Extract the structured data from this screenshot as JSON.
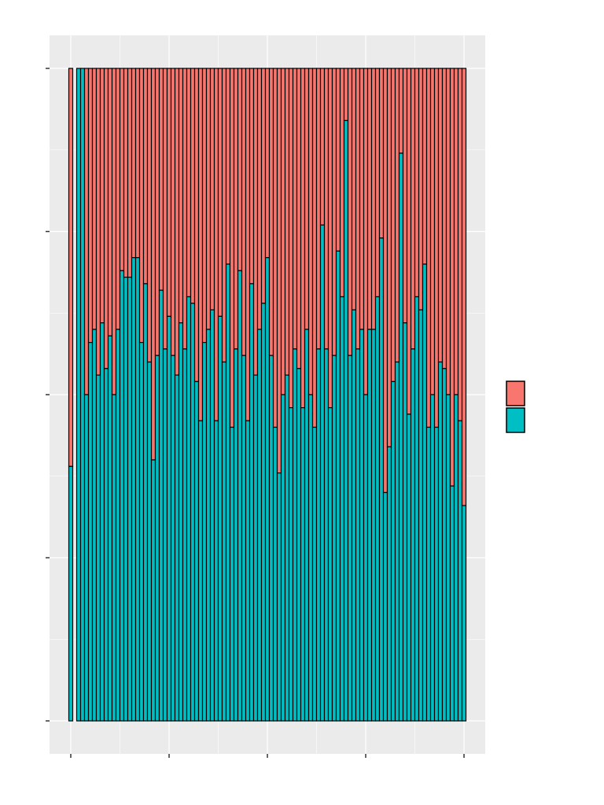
{
  "chart_data": {
    "type": "bar",
    "stacked": "proportion",
    "title": "",
    "xlabel": "",
    "ylabel": "",
    "xlim": [
      0,
      100
    ],
    "ylim": [
      0,
      1
    ],
    "xticks": [
      0,
      25,
      50,
      75,
      100
    ],
    "yticks": [
      0,
      0.25,
      0.5,
      0.75,
      1
    ],
    "grid": true,
    "legend": {
      "placement": "right",
      "entries": [
        {
          "color": "#F8766D"
        },
        {
          "color": "#00BFC4"
        }
      ]
    },
    "colors": {
      "top_series": "#F8766D",
      "bottom_series": "#00BFC4",
      "panel": "#EBEBEB",
      "grid": "#FFFFFF",
      "outline": "#000000"
    },
    "x": [
      0,
      1,
      2,
      3,
      4,
      5,
      6,
      7,
      8,
      9,
      10,
      11,
      12,
      13,
      14,
      15,
      16,
      17,
      18,
      19,
      20,
      21,
      22,
      23,
      24,
      25,
      26,
      27,
      28,
      29,
      30,
      31,
      32,
      33,
      34,
      35,
      36,
      37,
      38,
      39,
      40,
      41,
      42,
      43,
      44,
      45,
      46,
      47,
      48,
      49,
      50,
      51,
      52,
      53,
      54,
      55,
      56,
      57,
      58,
      59,
      60,
      61,
      62,
      63,
      64,
      65,
      66,
      67,
      68,
      69,
      70,
      71,
      72,
      73,
      74,
      75,
      76,
      77,
      78,
      79,
      80,
      81,
      82,
      83,
      84,
      85,
      86,
      87,
      88,
      89,
      90,
      91,
      92,
      93,
      94,
      95,
      96,
      97,
      98,
      99,
      100
    ],
    "bottom_share": [
      0.39,
      null,
      1.0,
      1.0,
      0.5,
      0.58,
      0.6,
      0.53,
      0.61,
      0.54,
      0.59,
      0.5,
      0.6,
      0.69,
      0.68,
      0.68,
      0.71,
      0.71,
      0.58,
      0.67,
      0.55,
      0.4,
      0.56,
      0.66,
      0.57,
      0.62,
      0.56,
      0.53,
      0.61,
      0.57,
      0.65,
      0.64,
      0.52,
      0.46,
      0.58,
      0.6,
      0.63,
      0.46,
      0.62,
      0.55,
      0.7,
      0.45,
      0.57,
      0.69,
      0.56,
      0.46,
      0.67,
      0.53,
      0.6,
      0.64,
      0.71,
      0.56,
      0.45,
      0.38,
      0.5,
      0.53,
      0.48,
      0.57,
      0.54,
      0.48,
      0.6,
      0.5,
      0.45,
      0.57,
      0.76,
      0.57,
      0.48,
      0.56,
      0.72,
      0.65,
      0.92,
      0.56,
      0.63,
      0.57,
      0.6,
      0.5,
      0.6,
      0.6,
      0.65,
      0.74,
      0.35,
      0.42,
      0.52,
      0.55,
      0.87,
      0.61,
      0.47,
      0.57,
      0.65,
      0.63,
      0.7,
      0.45,
      0.5,
      0.45,
      0.55,
      0.54,
      0.5,
      0.36,
      0.5,
      0.46,
      0.33
    ]
  }
}
